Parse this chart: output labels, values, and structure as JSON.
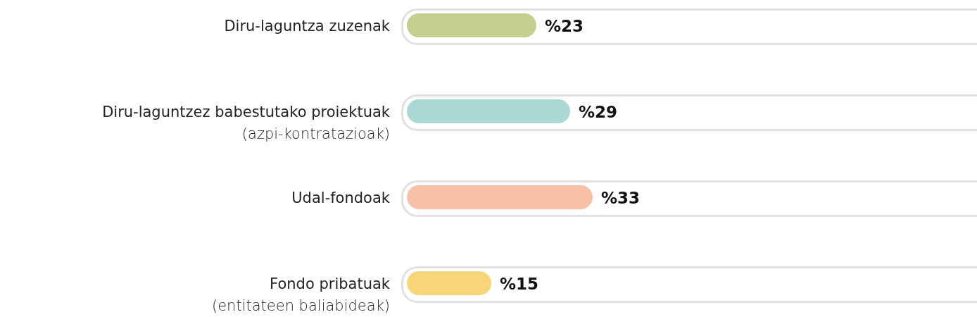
{
  "chart_data": {
    "type": "bar",
    "orientation": "horizontal",
    "categories": [
      "Diru-laguntza zuzenak",
      "Diru-laguntzez babestutako proiektuak\n(azpi-kontratazioak)",
      "Udal-fondoak",
      "Fondo pribatuak\n(entitateen baliabideak)"
    ],
    "values": [
      23,
      29,
      33,
      15
    ],
    "colors": [
      "#c2cf8e",
      "#aad8d5",
      "#f7c1a8",
      "#f7d67a"
    ],
    "value_labels": [
      "%23",
      "%29",
      "%33",
      "%15"
    ]
  }
}
